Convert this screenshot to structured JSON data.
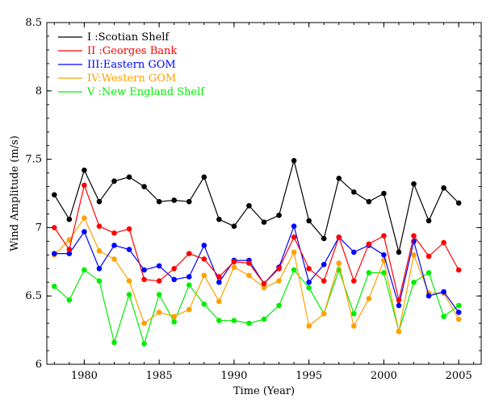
{
  "chart_data": {
    "type": "line",
    "title": "",
    "xlabel": "Time (Year)",
    "ylabel": "Wind Amplitude (m/s)",
    "xlim": [
      1977.5,
      2006.5
    ],
    "ylim": [
      6,
      8.5
    ],
    "xticks": [
      1980,
      1985,
      1990,
      1995,
      2000,
      2005
    ],
    "xtick_labels": [
      "1980",
      "1985",
      "1990",
      "1995",
      "2000",
      "2005"
    ],
    "yticks": [
      6,
      6.5,
      7,
      7.5,
      8,
      8.5
    ],
    "ytick_labels": [
      "6",
      "6.5",
      "7",
      "7.5",
      "8",
      "8.5"
    ],
    "legend_position": "top-left",
    "x": [
      1978,
      1979,
      1980,
      1981,
      1982,
      1983,
      1984,
      1985,
      1986,
      1987,
      1988,
      1989,
      1990,
      1991,
      1992,
      1993,
      1994,
      1995,
      1996,
      1997,
      1998,
      1999,
      2000,
      2001,
      2002,
      2003,
      2004,
      2005
    ],
    "series": [
      {
        "name": "I :Scotian Shelf",
        "color": "#000000",
        "values": [
          7.24,
          7.06,
          7.42,
          7.19,
          7.34,
          7.37,
          7.3,
          7.19,
          7.2,
          7.19,
          7.37,
          7.06,
          7.01,
          7.16,
          7.04,
          7.09,
          7.49,
          7.05,
          6.92,
          7.36,
          7.26,
          7.19,
          7.25,
          6.82,
          7.32,
          7.05,
          7.29,
          7.18
        ]
      },
      {
        "name": "II :Georges Bank",
        "color": "#ff0000",
        "values": [
          7.0,
          6.84,
          7.31,
          7.01,
          6.96,
          6.99,
          6.62,
          6.61,
          6.7,
          6.81,
          6.77,
          6.64,
          6.75,
          6.74,
          6.59,
          6.7,
          6.93,
          6.7,
          6.61,
          6.93,
          6.61,
          6.88,
          6.94,
          6.47,
          6.94,
          6.79,
          6.89,
          6.69
        ]
      },
      {
        "name": "III:Eastern GOM",
        "color": "#0000ff",
        "values": [
          6.81,
          6.81,
          6.97,
          6.7,
          6.87,
          6.84,
          6.69,
          6.72,
          6.62,
          6.64,
          6.87,
          6.6,
          6.76,
          6.76,
          6.59,
          6.71,
          7.01,
          6.6,
          6.73,
          6.93,
          6.82,
          6.87,
          6.8,
          6.43,
          6.9,
          6.5,
          6.53,
          6.38
        ]
      },
      {
        "name": "IV:Western GOM",
        "color": "#ffa000",
        "values": [
          6.8,
          6.91,
          7.07,
          6.83,
          6.77,
          6.61,
          6.3,
          6.38,
          6.35,
          6.4,
          6.65,
          6.46,
          6.71,
          6.65,
          6.56,
          6.61,
          6.82,
          6.28,
          6.37,
          6.74,
          6.28,
          6.48,
          6.76,
          6.24,
          6.8,
          6.52,
          6.52,
          6.33
        ]
      },
      {
        "name": "V :New England Shelf",
        "color": "#00ee00",
        "values": [
          6.57,
          6.47,
          6.69,
          6.61,
          6.16,
          6.51,
          6.15,
          6.51,
          6.31,
          6.58,
          6.44,
          6.32,
          6.32,
          6.3,
          6.33,
          6.43,
          6.69,
          6.56,
          6.37,
          6.69,
          6.37,
          6.67,
          6.67,
          6.24,
          6.6,
          6.67,
          6.35,
          6.43
        ]
      }
    ]
  }
}
